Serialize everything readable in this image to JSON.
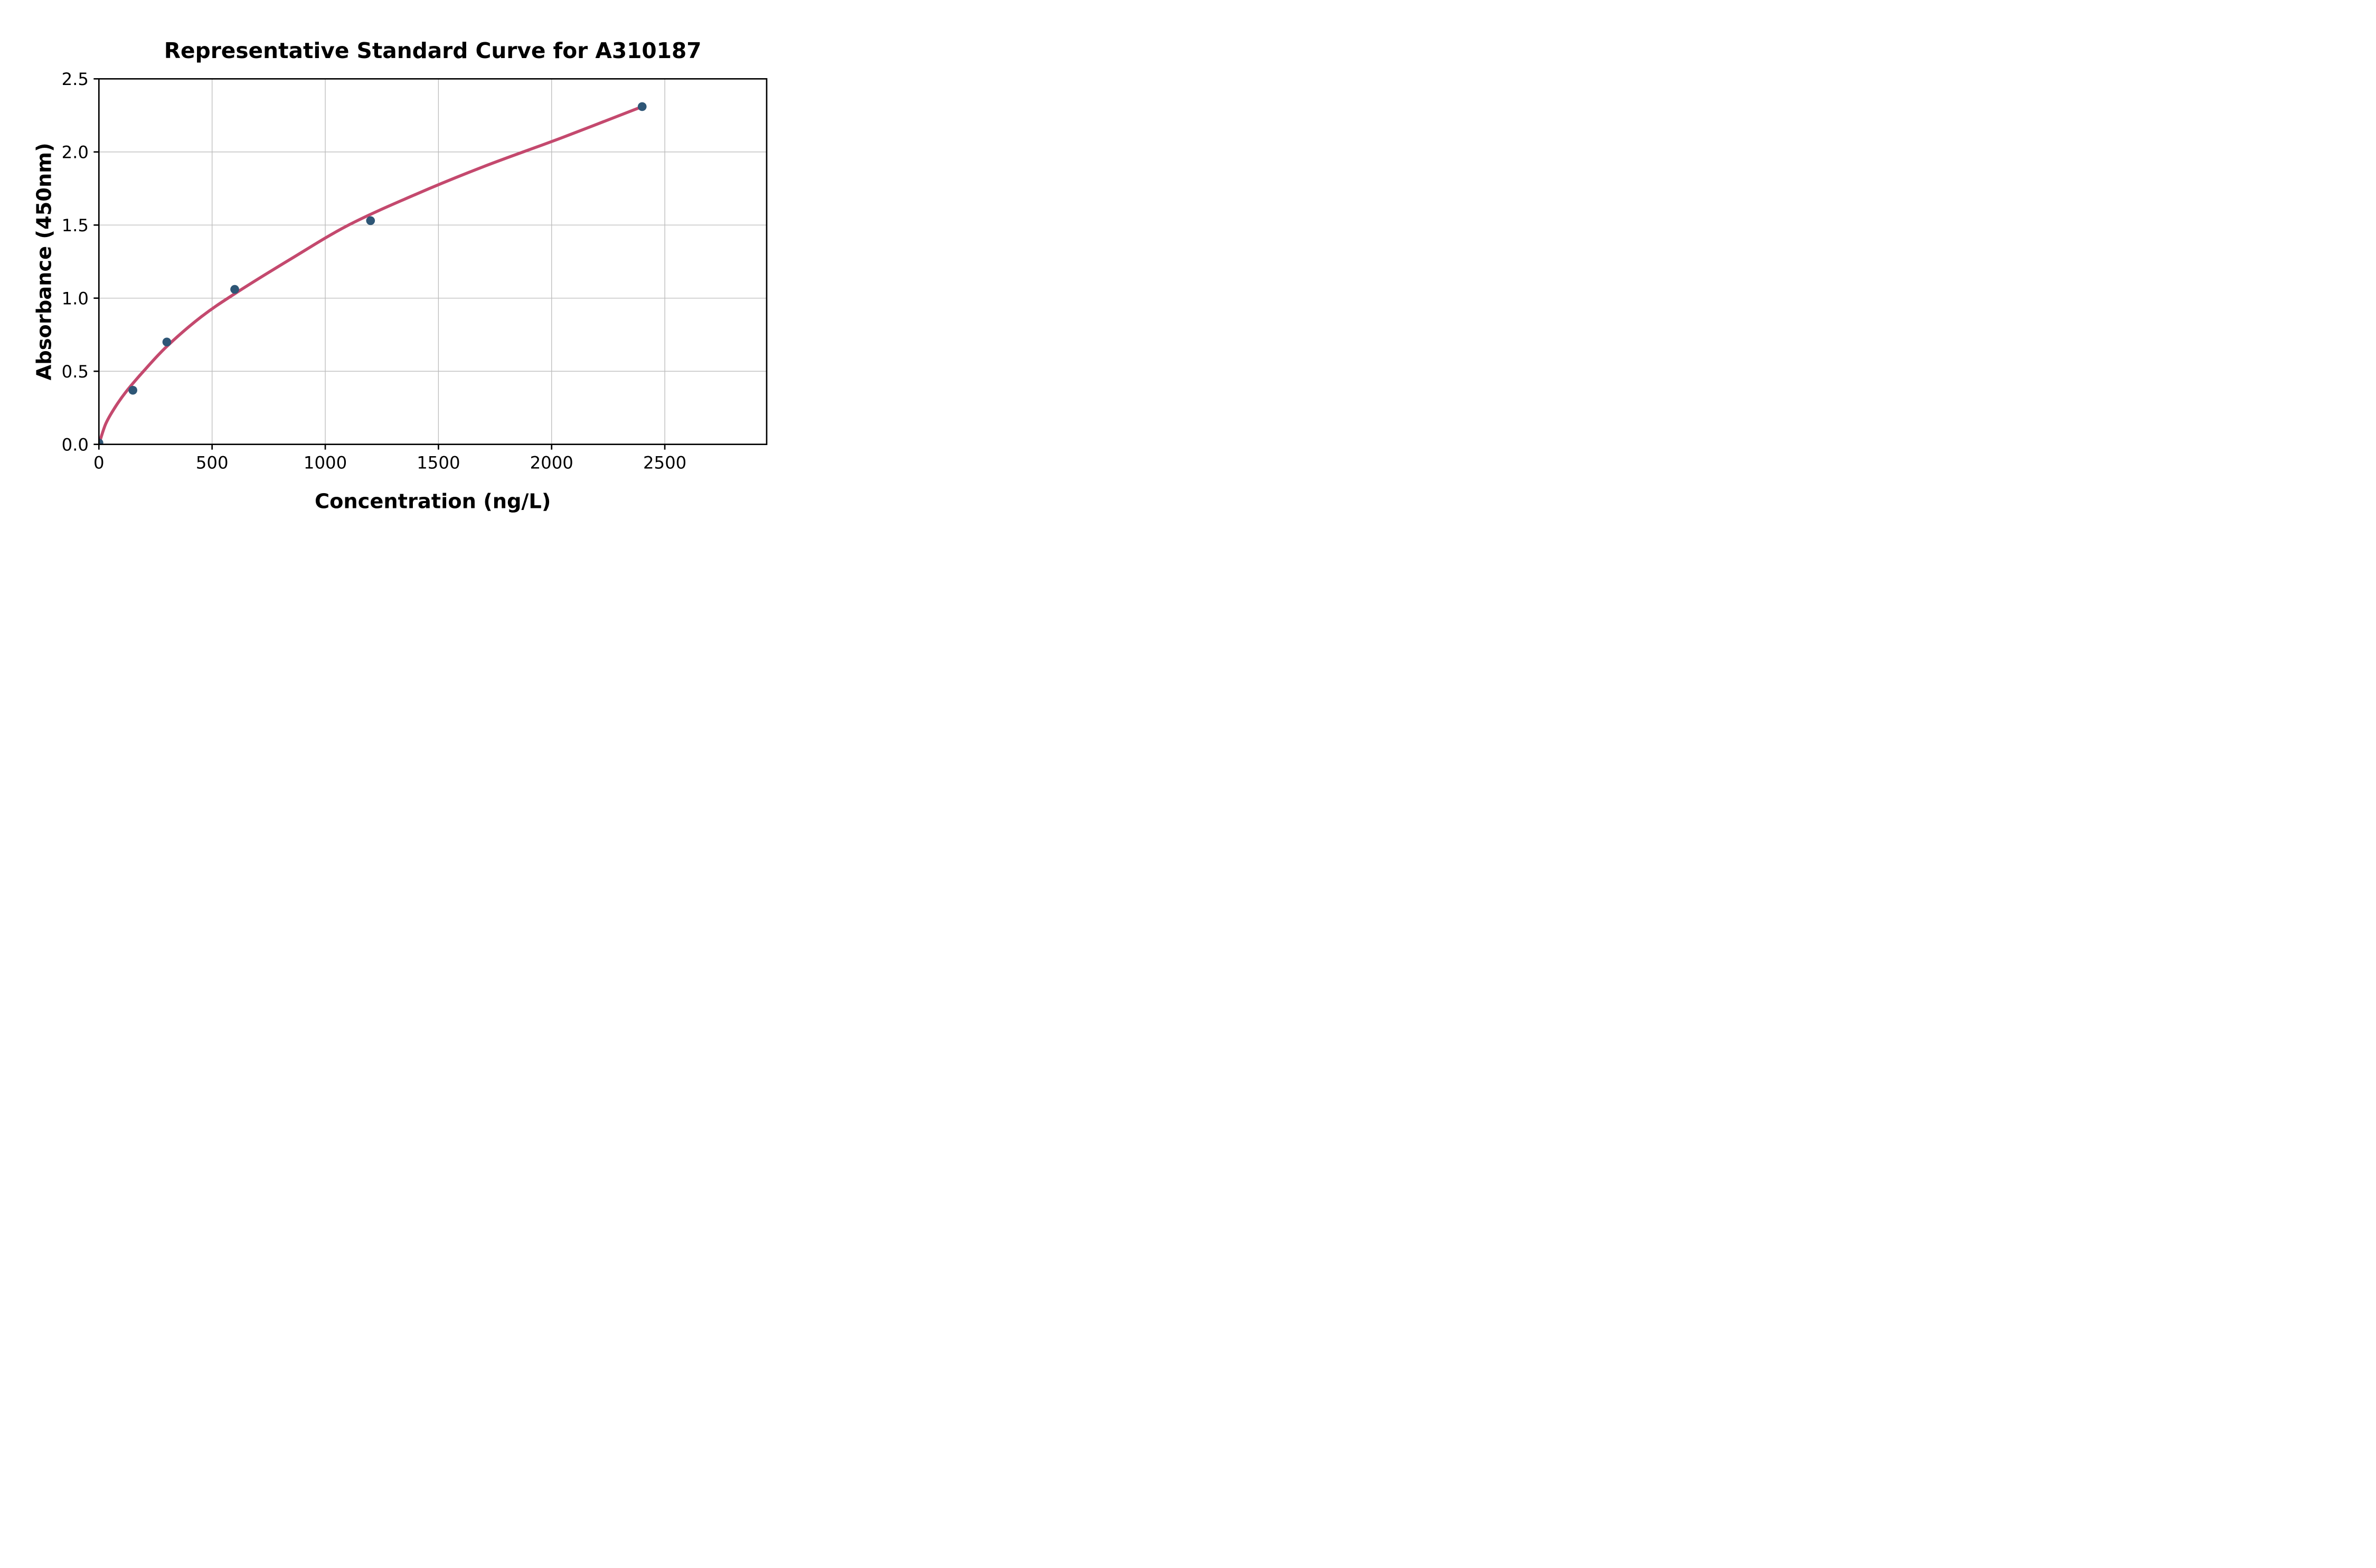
{
  "chart_data": {
    "type": "scatter",
    "title": "Representative Standard Curve for A310187",
    "xlabel": "Concentration (ng/L)",
    "ylabel": "Absorbance (450nm)",
    "points": [
      {
        "x": 0,
        "y": 0.01
      },
      {
        "x": 150,
        "y": 0.37
      },
      {
        "x": 300,
        "y": 0.7
      },
      {
        "x": 600,
        "y": 1.06
      },
      {
        "x": 1200,
        "y": 1.53
      },
      {
        "x": 2400,
        "y": 2.31
      }
    ],
    "fit_curve_points": [
      [
        0,
        0
      ],
      [
        30,
        0.14
      ],
      [
        70,
        0.25
      ],
      [
        120,
        0.36
      ],
      [
        197,
        0.5
      ],
      [
        300,
        0.67
      ],
      [
        450,
        0.87
      ],
      [
        600,
        1.03
      ],
      [
        850,
        1.27
      ],
      [
        1103,
        1.5
      ],
      [
        1400,
        1.71
      ],
      [
        1700,
        1.9
      ],
      [
        2050,
        2.1
      ],
      [
        2400,
        2.31
      ]
    ],
    "xlim": [
      0,
      2950
    ],
    "ylim": [
      0,
      2.5
    ],
    "xticks": {
      "values": [
        0,
        500,
        1000,
        1500,
        2000,
        2500
      ],
      "labels": [
        "0",
        "500",
        "1000",
        "1500",
        "2000",
        "2500"
      ]
    },
    "yticks": {
      "values": [
        0,
        0.5,
        1.0,
        1.5,
        2.0,
        2.5
      ],
      "labels": [
        "0.0",
        "0.5",
        "1.0",
        "1.5",
        "2.0",
        "2.5"
      ]
    },
    "grid": true,
    "legend": null,
    "colors": {
      "marker": "#2e5676",
      "curve": "#c4496e",
      "grid": "#bcbcbc",
      "axis": "#000000",
      "background": "#ffffff"
    }
  }
}
